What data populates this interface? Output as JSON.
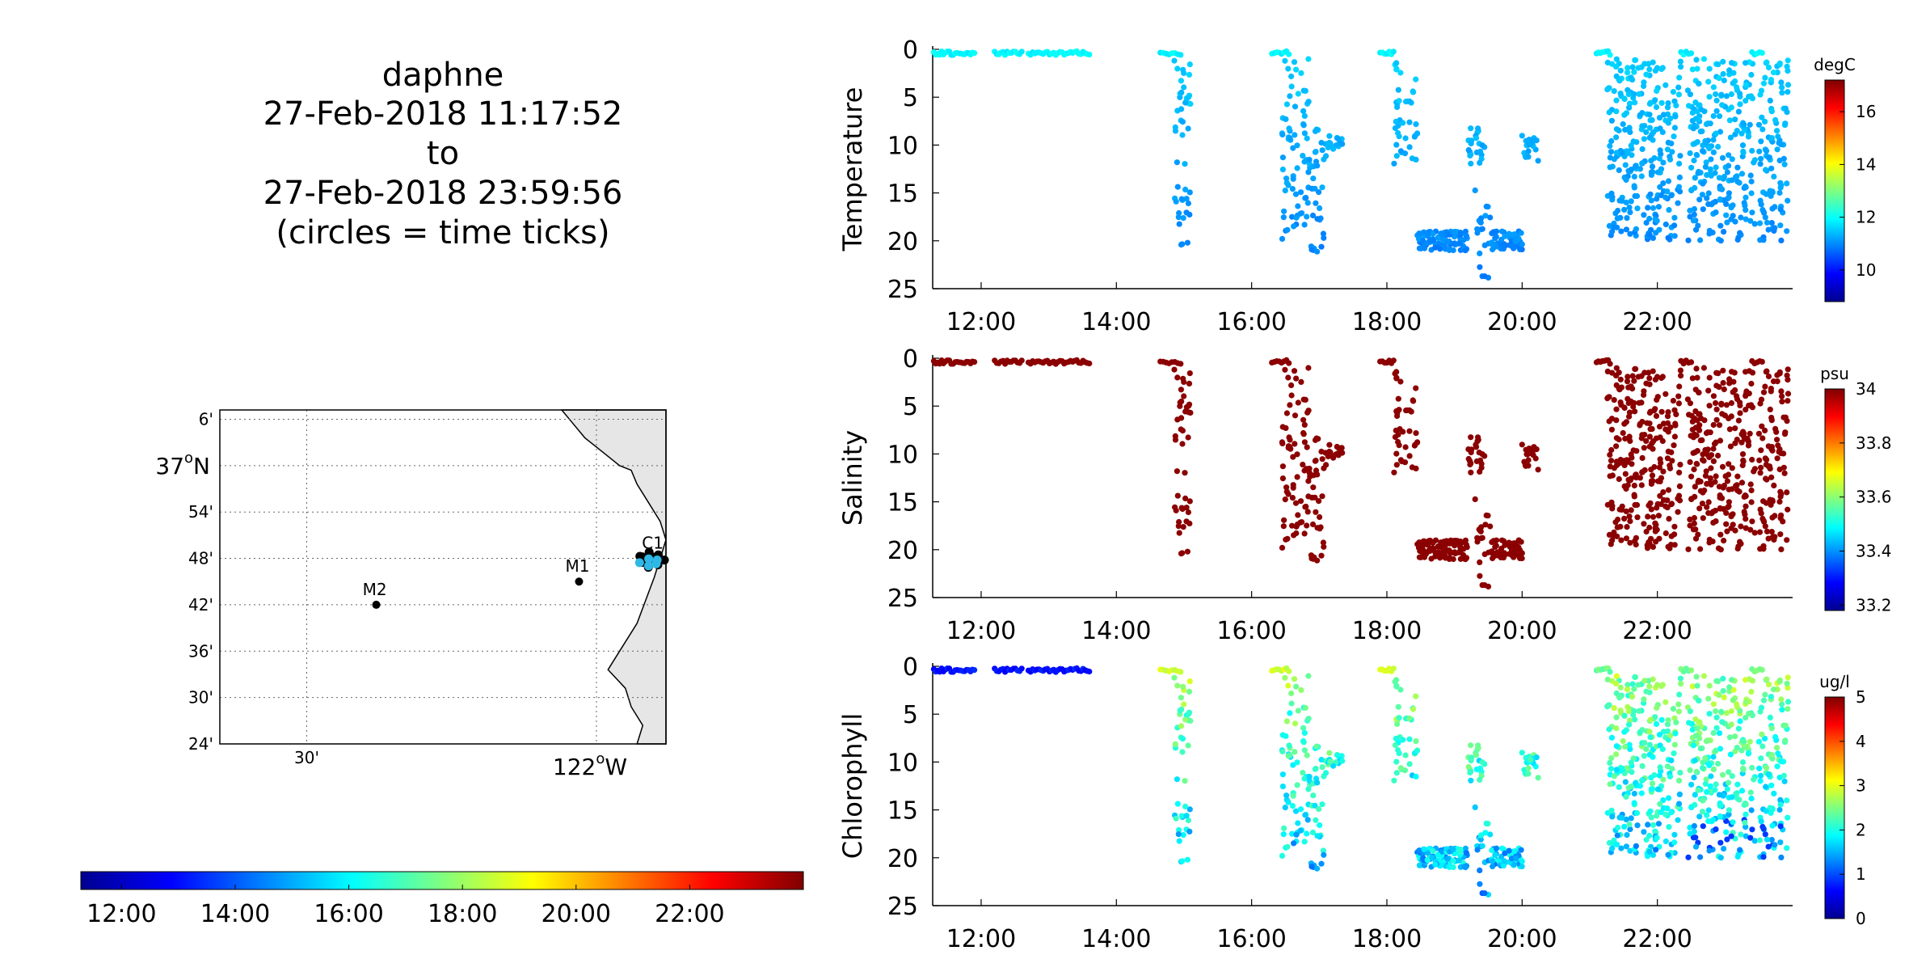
{
  "title": {
    "line1": "daphne",
    "line2": "27-Feb-2018 11:17:52",
    "line3": "to",
    "line4": "27-Feb-2018 23:59:56",
    "line5": "(circles = time ticks)"
  },
  "map": {
    "lat_labels": [
      "6'",
      "37°N",
      "54'",
      "48'",
      "42'",
      "36'",
      "30'",
      "24'"
    ],
    "lon_labels": [
      "30'",
      "122°W"
    ],
    "lat_label_text": {
      "deg": "37",
      "sup": "o",
      "dir": "N"
    },
    "lon_label_text": {
      "deg": "122",
      "sup": "o",
      "dir": "W"
    },
    "stations": [
      {
        "name": "C1",
        "lon": -121.9,
        "lat": 36.8
      },
      {
        "name": "M1",
        "lon": -122.03,
        "lat": 36.75
      },
      {
        "name": "M2",
        "lon": -122.38,
        "lat": 36.7
      }
    ],
    "land_color": "#e6e6e6"
  },
  "time_colorbar": {
    "ticks": [
      "12:00",
      "14:00",
      "16:00",
      "18:00",
      "20:00",
      "22:00"
    ]
  },
  "chart_data": [
    {
      "type": "scatter",
      "ylabel": "Temperature",
      "colorbar_unit": "degC",
      "colorbar_ticks": [
        10,
        12,
        14,
        16
      ],
      "colorbar_range": [
        8.8,
        17.2
      ],
      "x_range": [
        "11:17",
        "24:00"
      ],
      "x_ticks": [
        "12:00",
        "14:00",
        "16:00",
        "18:00",
        "20:00",
        "22:00"
      ],
      "y_ticks": [
        0,
        5,
        10,
        15,
        20,
        25
      ],
      "ylim": [
        0,
        25
      ],
      "y_reversed": true,
      "colormap": "jet",
      "point_color_value": 11.6
    },
    {
      "type": "scatter",
      "ylabel": "Salinity",
      "colorbar_unit": "psu",
      "colorbar_ticks": [
        33.2,
        33.4,
        33.6,
        33.8,
        34
      ],
      "colorbar_range": [
        33.18,
        34.0
      ],
      "x_range": [
        "11:17",
        "24:00"
      ],
      "x_ticks": [
        "12:00",
        "14:00",
        "16:00",
        "18:00",
        "20:00",
        "22:00"
      ],
      "y_ticks": [
        0,
        5,
        10,
        15,
        20,
        25
      ],
      "ylim": [
        0,
        25
      ],
      "y_reversed": true,
      "colormap": "jet",
      "point_color_value": 34.0
    },
    {
      "type": "scatter",
      "ylabel": "Chlorophyll",
      "colorbar_unit": "ug/l",
      "colorbar_ticks": [
        0,
        1,
        2,
        3,
        4,
        5
      ],
      "colorbar_range": [
        0,
        5
      ],
      "x_range": [
        "11:17",
        "24:00"
      ],
      "x_ticks": [
        "12:00",
        "14:00",
        "16:00",
        "18:00",
        "20:00",
        "22:00"
      ],
      "y_ticks": [
        0,
        5,
        10,
        15,
        20,
        25
      ],
      "ylim": [
        0,
        25
      ],
      "y_reversed": true,
      "colormap": "jet"
    }
  ]
}
